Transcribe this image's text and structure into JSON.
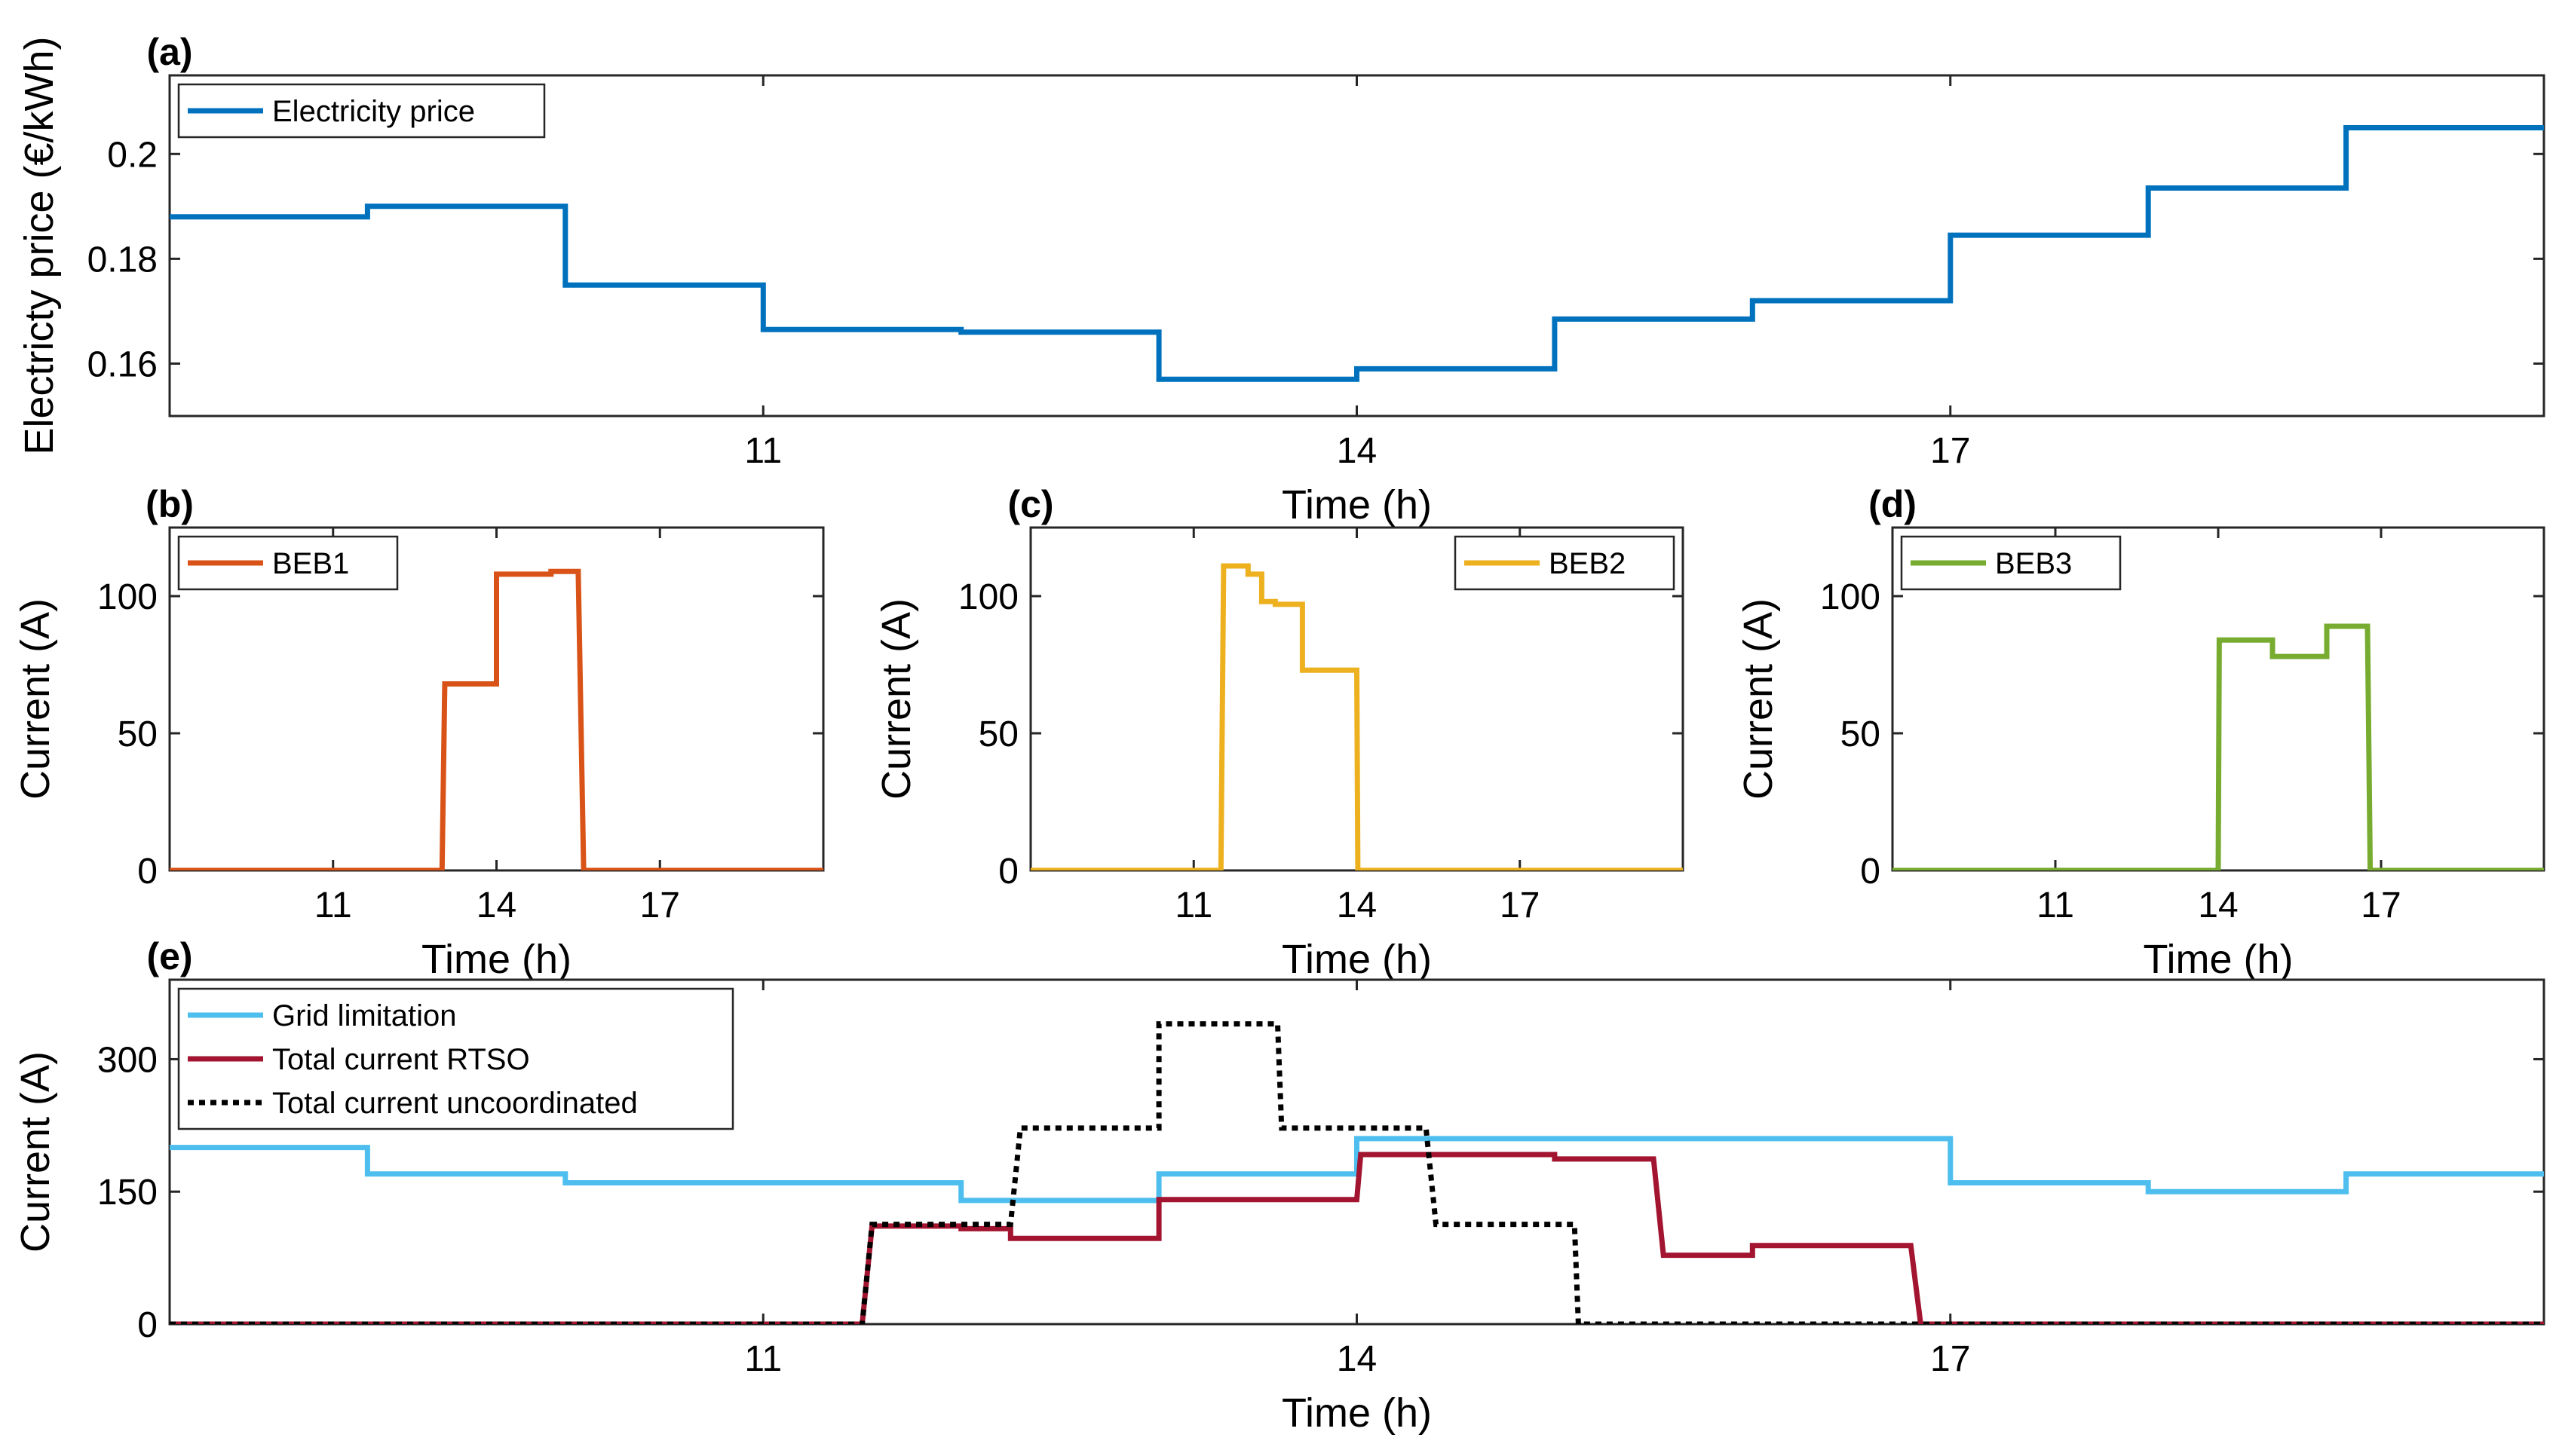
{
  "chart_data": [
    {
      "panel": "(a)",
      "type": "line",
      "xlabel": "Time (h)",
      "ylabel": "Electricty price (€/kWh)",
      "xlim": [
        8,
        20
      ],
      "ylim": [
        0.15,
        0.215
      ],
      "xticks": [
        11,
        14,
        17
      ],
      "yticks": [
        0.16,
        0.18,
        0.2
      ],
      "ytick_labels": [
        "0.16",
        "0.18",
        "0.2"
      ],
      "legend_position": "top-left",
      "series": [
        {
          "name": "Electricity price",
          "color": "#0072BD",
          "style": "solid",
          "x": [
            8,
            9,
            9,
            10,
            10,
            11,
            11,
            12,
            12,
            13,
            13,
            14,
            14,
            15,
            15,
            16,
            16,
            17,
            17,
            18,
            18,
            19,
            19,
            20
          ],
          "y": [
            0.188,
            0.188,
            0.19,
            0.19,
            0.175,
            0.175,
            0.1665,
            0.1665,
            0.166,
            0.166,
            0.157,
            0.157,
            0.159,
            0.159,
            0.1685,
            0.1685,
            0.172,
            0.172,
            0.1845,
            0.1845,
            0.1935,
            0.1935,
            0.205,
            0.205
          ]
        }
      ]
    },
    {
      "panel": "(b)",
      "type": "line",
      "xlabel": "Time (h)",
      "ylabel": "Current (A)",
      "xlim": [
        8,
        20
      ],
      "ylim": [
        0,
        125
      ],
      "xticks": [
        11,
        14,
        17
      ],
      "yticks": [
        0,
        50,
        100
      ],
      "ytick_labels": [
        "0",
        "50",
        "100"
      ],
      "legend_position": "top-left",
      "series": [
        {
          "name": "BEB1",
          "color": "#D95319",
          "style": "solid",
          "x": [
            8,
            13,
            13.05,
            14,
            14,
            15,
            15,
            15.5,
            15.6,
            20
          ],
          "y": [
            0,
            0,
            68,
            68,
            108,
            108,
            109,
            109,
            0,
            0
          ]
        }
      ]
    },
    {
      "panel": "(c)",
      "type": "line",
      "xlabel": "Time (h)",
      "ylabel": "Current (A)",
      "xlim": [
        8,
        20
      ],
      "ylim": [
        0,
        125
      ],
      "xticks": [
        11,
        14,
        17
      ],
      "yticks": [
        0,
        50,
        100
      ],
      "ytick_labels": [
        "0",
        "50",
        "100"
      ],
      "legend_position": "top-right",
      "series": [
        {
          "name": "BEB2",
          "color": "#EDB120",
          "style": "solid",
          "x": [
            8,
            11.5,
            11.55,
            12,
            12,
            12.25,
            12.25,
            12.5,
            12.5,
            13,
            13,
            14,
            14.02,
            20
          ],
          "y": [
            0,
            0,
            111,
            111,
            108,
            108,
            98,
            98,
            97,
            97,
            73,
            73,
            0,
            0
          ]
        }
      ]
    },
    {
      "panel": "(d)",
      "type": "line",
      "xlabel": "Time (h)",
      "ylabel": "Current (A)",
      "xlim": [
        8,
        20
      ],
      "ylim": [
        0,
        125
      ],
      "xticks": [
        11,
        14,
        17
      ],
      "yticks": [
        0,
        50,
        100
      ],
      "ytick_labels": [
        "0",
        "50",
        "100"
      ],
      "legend_position": "top-left",
      "series": [
        {
          "name": "BEB3",
          "color": "#77AC30",
          "style": "solid",
          "x": [
            8,
            14,
            14.02,
            15,
            15,
            16,
            16,
            16.75,
            16.8,
            20
          ],
          "y": [
            0,
            0,
            84,
            84,
            78,
            78,
            89,
            89,
            0,
            0
          ]
        }
      ]
    },
    {
      "panel": "(e)",
      "type": "line",
      "xlabel": "Time (h)",
      "ylabel": "Current (A)",
      "xlim": [
        8,
        20
      ],
      "ylim": [
        0,
        390
      ],
      "xticks": [
        11,
        14,
        17
      ],
      "yticks": [
        0,
        150,
        300
      ],
      "ytick_labels": [
        "0",
        "150",
        "300"
      ],
      "legend_position": "top-left",
      "series": [
        {
          "name": "Grid limitation",
          "color": "#4DBEEE",
          "style": "solid",
          "x": [
            8,
            9,
            9,
            10,
            10,
            12,
            12,
            13,
            13,
            14,
            14,
            17,
            17,
            18,
            18,
            19,
            19,
            20
          ],
          "y": [
            200,
            200,
            170,
            170,
            160,
            160,
            140,
            140,
            170,
            170,
            210,
            210,
            160,
            160,
            150,
            150,
            170,
            170
          ]
        },
        {
          "name": "Total current RTSO",
          "color": "#A2142F",
          "style": "solid",
          "x": [
            8,
            11.5,
            11.55,
            12,
            12,
            12.25,
            12.25,
            13,
            13,
            14,
            14.02,
            15,
            15,
            15.5,
            15.55,
            16,
            16,
            16.8,
            16.85,
            20
          ],
          "y": [
            0,
            0,
            111,
            111,
            108,
            108,
            97,
            97,
            141,
            141,
            192,
            192,
            187,
            187,
            78,
            78,
            89,
            89,
            0,
            0
          ]
        },
        {
          "name": "Total current uncoordinated",
          "color": "#000000",
          "style": "dotted",
          "x": [
            8,
            11.5,
            11.55,
            12.25,
            12.3,
            13,
            13,
            13.6,
            13.62,
            14.35,
            14.4,
            15.1,
            15.12,
            20
          ],
          "y": [
            0,
            0,
            113,
            113,
            222,
            222,
            340,
            340,
            222,
            222,
            113,
            113,
            0,
            0
          ]
        }
      ]
    }
  ]
}
